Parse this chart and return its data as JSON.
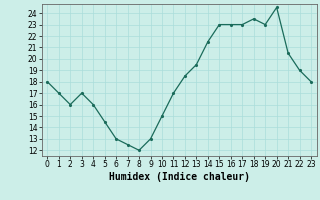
{
  "x": [
    0,
    1,
    2,
    3,
    4,
    5,
    6,
    7,
    8,
    9,
    10,
    11,
    12,
    13,
    14,
    15,
    16,
    17,
    18,
    19,
    20,
    21,
    22,
    23
  ],
  "y": [
    18,
    17,
    16,
    17,
    16,
    14.5,
    13,
    12.5,
    12,
    13,
    15,
    17,
    18.5,
    19.5,
    21.5,
    23,
    23,
    23,
    23.5,
    23,
    24.5,
    20.5,
    19,
    18
  ],
  "line_color": "#1a6b5a",
  "marker_color": "#1a6b5a",
  "bg_color": "#cceee8",
  "grid_color": "#aaddda",
  "xlabel": "Humidex (Indice chaleur)",
  "ylim_min": 11.5,
  "ylim_max": 24.8,
  "xlim_min": -0.5,
  "xlim_max": 23.5,
  "yticks": [
    12,
    13,
    14,
    15,
    16,
    17,
    18,
    19,
    20,
    21,
    22,
    23,
    24
  ],
  "xticks": [
    0,
    1,
    2,
    3,
    4,
    5,
    6,
    7,
    8,
    9,
    10,
    11,
    12,
    13,
    14,
    15,
    16,
    17,
    18,
    19,
    20,
    21,
    22,
    23
  ],
  "tick_fontsize": 5.5,
  "label_fontsize": 7
}
